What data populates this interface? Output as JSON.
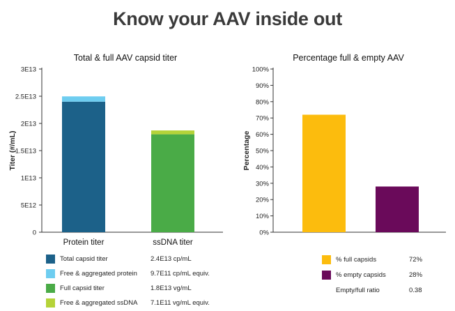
{
  "page": {
    "title": "Know your AAV inside out"
  },
  "charts": {
    "left": {
      "title": "Total & full AAV capsid titer",
      "ylabel": "Titer (#/mL)",
      "yticks": [
        "3E13",
        "2.5E13",
        "2E13",
        "1.5E13",
        "1E13",
        "5E12",
        "0"
      ],
      "categories": [
        "Protein titer",
        "ssDNA titer"
      ]
    },
    "right": {
      "title": "Percentage full & empty AAV",
      "ylabel": "Percentage",
      "yticks": [
        "100%",
        "90%",
        "80%",
        "70%",
        "60%",
        "50%",
        "40%",
        "30%",
        "20%",
        "10%",
        "0%"
      ]
    }
  },
  "legend_left": [
    {
      "label": "Total capsid titer",
      "value": "2.4E13 cp/mL",
      "color": "#1c6189"
    },
    {
      "label": "Free & aggregated protein",
      "value": "9.7E11 cp/mL equiv.",
      "color": "#6ecdf0"
    },
    {
      "label": "Full capsid titer",
      "value": "1.8E13 vg/mL",
      "color": "#4aab47"
    },
    {
      "label": "Free & aggregated ssDNA",
      "value": "7.1E11 vg/mL equiv.",
      "color": "#b5d339"
    }
  ],
  "legend_right": [
    {
      "label": "% full capsids",
      "value": "72%",
      "color": "#fcbc0d"
    },
    {
      "label": "% empty capsids",
      "value": "28%",
      "color": "#6a0a5a"
    },
    {
      "label": "Empty/full ratio",
      "value": "0.38",
      "color": ""
    }
  ],
  "chart_data": [
    {
      "type": "bar",
      "stacked": true,
      "title": "Total & full AAV capsid titer",
      "xlabel": "",
      "ylabel": "Titer (#/mL)",
      "ylim": [
        0,
        30000000000000.0
      ],
      "categories": [
        "Protein titer",
        "ssDNA titer"
      ],
      "series": [
        {
          "name": "Total capsid titer",
          "values": [
            24000000000000.0,
            null
          ],
          "color": "#1c6189"
        },
        {
          "name": "Free & aggregated protein",
          "values": [
            970000000000.0,
            null
          ],
          "color": "#6ecdf0"
        },
        {
          "name": "Full capsid titer",
          "values": [
            null,
            18000000000000.0
          ],
          "color": "#4aab47"
        },
        {
          "name": "Free & aggregated ssDNA",
          "values": [
            null,
            710000000000.0
          ],
          "color": "#b5d339"
        }
      ],
      "grid": false
    },
    {
      "type": "bar",
      "title": "Percentage full & empty AAV",
      "xlabel": "",
      "ylabel": "Percentage",
      "ylim": [
        0,
        100
      ],
      "categories": [
        "% full capsids",
        "% empty capsids"
      ],
      "series": [
        {
          "name": "% full capsids",
          "values": [
            72,
            null
          ],
          "color": "#fcbc0d"
        },
        {
          "name": "% empty capsids",
          "values": [
            null,
            28
          ],
          "color": "#6a0a5a"
        }
      ],
      "grid": false
    }
  ]
}
